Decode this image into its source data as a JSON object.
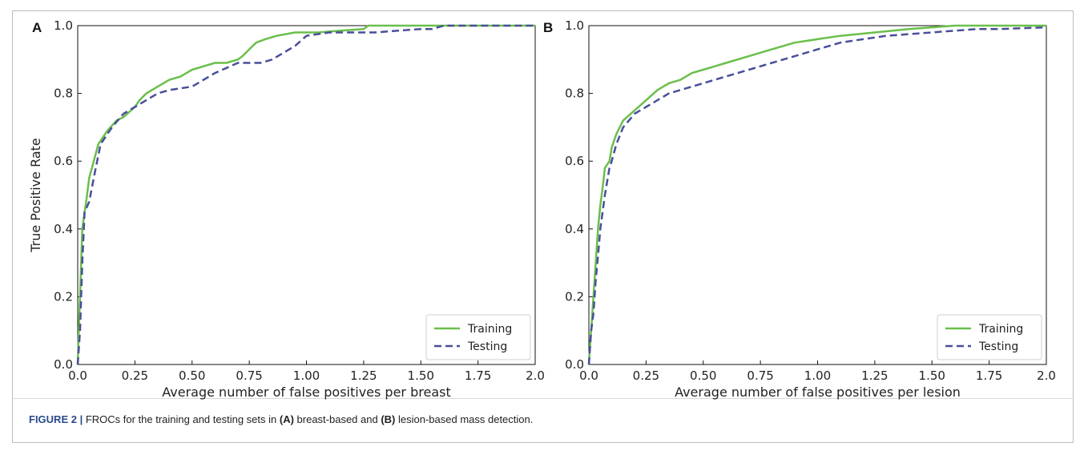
{
  "colors": {
    "training": "#6abf4b",
    "testing": "#4a4f9a"
  },
  "caption": {
    "label": "FIGURE 2 |",
    "part1": " FROCs for the training and testing sets in ",
    "a_ref": "(A)",
    "part2": " breast-based and ",
    "b_ref": "(B)",
    "part3": " lesion-based mass detection."
  },
  "chart_data": [
    {
      "panel": "A",
      "type": "line",
      "xlabel": "Average number of false positives per breast",
      "ylabel": "True Positive Rate",
      "xlim": [
        0,
        2.0
      ],
      "ylim": [
        0,
        1.0
      ],
      "xticks": [
        "0.0",
        "0.25",
        "0.50",
        "0.75",
        "1.00",
        "1.25",
        "1.50",
        "1.75",
        "2.0"
      ],
      "yticks": [
        "0.0",
        "0.2",
        "0.4",
        "0.6",
        "0.8",
        "1.0"
      ],
      "legend_position": "bottom-right",
      "grid": false,
      "series": [
        {
          "name": "Training",
          "style": "solid",
          "x": [
            0,
            0.005,
            0.01,
            0.015,
            0.02,
            0.03,
            0.035,
            0.05,
            0.07,
            0.09,
            0.1,
            0.13,
            0.17,
            0.2,
            0.25,
            0.27,
            0.3,
            0.35,
            0.4,
            0.45,
            0.5,
            0.55,
            0.6,
            0.65,
            0.7,
            0.72,
            0.75,
            0.78,
            0.82,
            0.87,
            0.95,
            1.05,
            1.15,
            1.25,
            1.27,
            1.4,
            1.6,
            2.0
          ],
          "y": [
            0,
            0.1,
            0.2,
            0.3,
            0.4,
            0.45,
            0.47,
            0.55,
            0.6,
            0.65,
            0.66,
            0.69,
            0.72,
            0.73,
            0.76,
            0.78,
            0.8,
            0.82,
            0.84,
            0.85,
            0.87,
            0.88,
            0.89,
            0.89,
            0.9,
            0.91,
            0.93,
            0.95,
            0.96,
            0.97,
            0.98,
            0.98,
            0.985,
            0.99,
            1.0,
            1.0,
            1.0,
            1.0
          ]
        },
        {
          "name": "Testing",
          "style": "dashed",
          "x": [
            0,
            0.01,
            0.02,
            0.03,
            0.05,
            0.07,
            0.1,
            0.15,
            0.2,
            0.25,
            0.3,
            0.35,
            0.4,
            0.5,
            0.6,
            0.7,
            0.8,
            0.85,
            0.9,
            0.95,
            1.0,
            1.1,
            1.2,
            1.3,
            1.4,
            1.5,
            1.55,
            1.6,
            1.8,
            2.0
          ],
          "y": [
            0,
            0.1,
            0.3,
            0.45,
            0.48,
            0.55,
            0.65,
            0.7,
            0.74,
            0.76,
            0.78,
            0.8,
            0.81,
            0.82,
            0.86,
            0.89,
            0.89,
            0.9,
            0.92,
            0.94,
            0.97,
            0.98,
            0.98,
            0.98,
            0.985,
            0.99,
            0.99,
            1.0,
            1.0,
            1.0
          ]
        }
      ]
    },
    {
      "panel": "B",
      "type": "line",
      "xlabel": "Average number of false positives per lesion",
      "ylabel": "",
      "xlim": [
        0,
        2.0
      ],
      "ylim": [
        0,
        1.0
      ],
      "xticks": [
        "0.0",
        "0.25",
        "0.50",
        "0.75",
        "1.00",
        "1.25",
        "1.50",
        "1.75",
        "2.0"
      ],
      "yticks": [
        "0.0",
        "0.2",
        "0.4",
        "0.6",
        "0.8",
        "1.0"
      ],
      "legend_position": "bottom-right",
      "grid": false,
      "series": [
        {
          "name": "Training",
          "style": "solid",
          "x": [
            0,
            0.005,
            0.01,
            0.02,
            0.03,
            0.04,
            0.05,
            0.06,
            0.07,
            0.09,
            0.1,
            0.12,
            0.15,
            0.2,
            0.25,
            0.3,
            0.35,
            0.4,
            0.45,
            0.5,
            0.55,
            0.6,
            0.7,
            0.8,
            0.9,
            1.0,
            1.1,
            1.25,
            1.4,
            1.5,
            1.6,
            2.0
          ],
          "y": [
            0,
            0.05,
            0.1,
            0.2,
            0.3,
            0.4,
            0.47,
            0.52,
            0.58,
            0.6,
            0.64,
            0.68,
            0.72,
            0.75,
            0.78,
            0.81,
            0.83,
            0.84,
            0.86,
            0.87,
            0.88,
            0.89,
            0.91,
            0.93,
            0.95,
            0.96,
            0.97,
            0.98,
            0.99,
            0.995,
            1.0,
            1.0
          ]
        },
        {
          "name": "Testing",
          "style": "dashed",
          "x": [
            0,
            0.005,
            0.01,
            0.02,
            0.03,
            0.04,
            0.05,
            0.07,
            0.09,
            0.1,
            0.12,
            0.15,
            0.2,
            0.25,
            0.3,
            0.35,
            0.4,
            0.5,
            0.6,
            0.7,
            0.8,
            0.9,
            1.0,
            1.1,
            1.2,
            1.3,
            1.4,
            1.5,
            1.6,
            1.7,
            1.8,
            2.0
          ],
          "y": [
            0,
            0.05,
            0.1,
            0.15,
            0.25,
            0.32,
            0.4,
            0.5,
            0.58,
            0.6,
            0.65,
            0.7,
            0.74,
            0.76,
            0.78,
            0.8,
            0.81,
            0.83,
            0.85,
            0.87,
            0.89,
            0.91,
            0.93,
            0.95,
            0.96,
            0.97,
            0.975,
            0.98,
            0.985,
            0.99,
            0.99,
            0.995
          ]
        }
      ]
    }
  ]
}
